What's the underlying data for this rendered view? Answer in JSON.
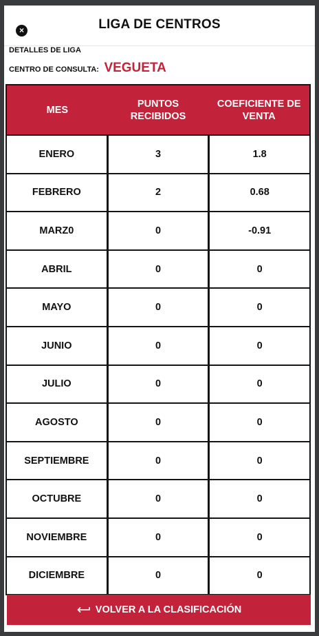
{
  "header": {
    "title": "LIGA DE CENTROS",
    "close_icon": "×"
  },
  "details": {
    "label": "DETALLES DE LIGA",
    "center_label": "CENTRO DE CONSULTA:",
    "center_value": "VEGUETA"
  },
  "table": {
    "columns": [
      "MES",
      "PUNTOS RECIBIDOS",
      "COEFICIENTE DE VENTA"
    ],
    "rows": [
      {
        "mes": "ENERO",
        "puntos": "3",
        "coeficiente": "1.8"
      },
      {
        "mes": "FEBRERO",
        "puntos": "2",
        "coeficiente": "0.68"
      },
      {
        "mes": "MARZ0",
        "puntos": "0",
        "coeficiente": "-0.91"
      },
      {
        "mes": "ABRIL",
        "puntos": "0",
        "coeficiente": "0"
      },
      {
        "mes": "MAYO",
        "puntos": "0",
        "coeficiente": "0"
      },
      {
        "mes": "JUNIO",
        "puntos": "0",
        "coeficiente": "0"
      },
      {
        "mes": "JULIO",
        "puntos": "0",
        "coeficiente": "0"
      },
      {
        "mes": "AGOSTO",
        "puntos": "0",
        "coeficiente": "0"
      },
      {
        "mes": "SEPTIEMBRE",
        "puntos": "0",
        "coeficiente": "0"
      },
      {
        "mes": "OCTUBRE",
        "puntos": "0",
        "coeficiente": "0"
      },
      {
        "mes": "NOVIEMBRE",
        "puntos": "0",
        "coeficiente": "0"
      },
      {
        "mes": "DICIEMBRE",
        "puntos": "0",
        "coeficiente": "0"
      }
    ]
  },
  "footer": {
    "back_label": "VOLVER A LA CLASIFICACIÓN",
    "back_icon": "return-arrow-icon"
  },
  "colors": {
    "accent": "#c2233b",
    "backdrop": "#3a3b3d"
  }
}
